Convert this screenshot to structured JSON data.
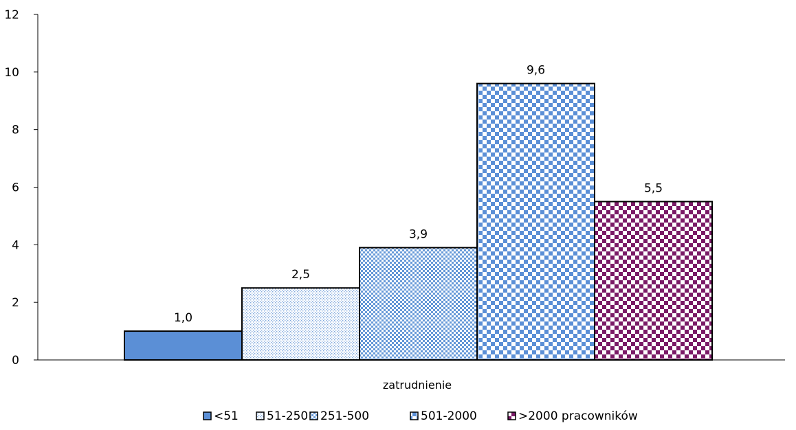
{
  "chart_data": {
    "type": "bar",
    "categories": [
      "zatrudnienie"
    ],
    "xlabel": "zatrudnienie",
    "ylabel": "",
    "ylim": [
      0,
      12
    ],
    "yticks": [
      0,
      2,
      4,
      6,
      8,
      10,
      12
    ],
    "grid": false,
    "legend_position": "bottom",
    "series": [
      {
        "name": "<51",
        "values": [
          1.0
        ],
        "label": "1,0",
        "pattern": "solid",
        "color": "#5b8fd6"
      },
      {
        "name": "51-250",
        "values": [
          2.5
        ],
        "label": "2,5",
        "pattern": "fine-dots",
        "color": "#7fa8dd"
      },
      {
        "name": "251-500",
        "values": [
          3.9
        ],
        "label": "3,9",
        "pattern": "small-checker",
        "color": "#6699d8"
      },
      {
        "name": "501-2000",
        "values": [
          9.6
        ],
        "label": "9,6",
        "pattern": "large-checker",
        "color": "#5b8fd6"
      },
      {
        "name": ">2000 pracowników",
        "values": [
          5.5
        ],
        "label": "5,5",
        "pattern": "large-checker",
        "color": "#7a1a66"
      }
    ]
  }
}
